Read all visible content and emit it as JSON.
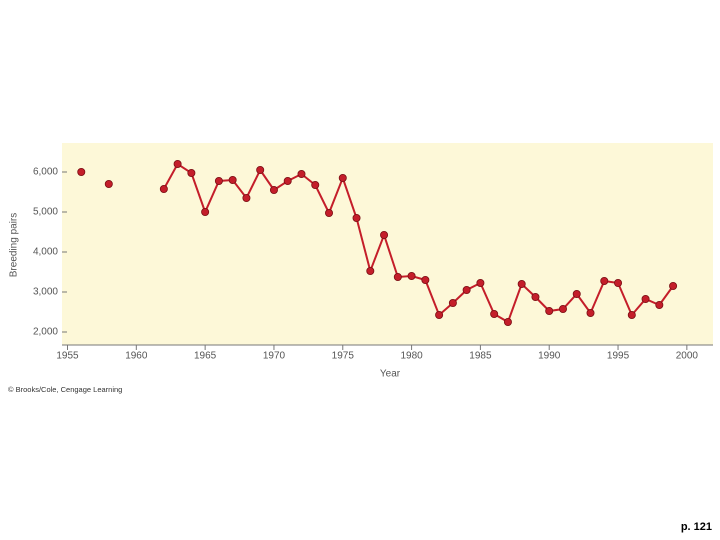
{
  "chart_data": {
    "type": "line",
    "y_label": "Breeding pairs",
    "x_label": "Year",
    "x": [
      1956,
      1957,
      1958,
      1959,
      1960,
      1961,
      1962,
      1963,
      1964,
      1965,
      1966,
      1967,
      1968,
      1969,
      1970,
      1971,
      1972,
      1973,
      1974,
      1975,
      1976,
      1977,
      1978,
      1979,
      1980,
      1981,
      1982,
      1983,
      1984,
      1985,
      1986,
      1987,
      1988,
      1989,
      1990,
      1991,
      1992,
      1993,
      1994,
      1995,
      1996,
      1997,
      1998,
      1999
    ],
    "series": [
      {
        "color": "#c41e2a",
        "values": [
          6000,
          null,
          5700,
          null,
          null,
          null,
          5575,
          6200,
          5975,
          5000,
          5775,
          5800,
          5350,
          6050,
          5550,
          5775,
          5950,
          5675,
          4975,
          5850,
          4850,
          3525,
          4425,
          3375,
          3400,
          3300,
          2425,
          2725,
          3050,
          3225,
          2450,
          2250,
          3200,
          2875,
          2525,
          2575,
          2950,
          2475,
          3275,
          3225,
          2425,
          2825,
          2675,
          3150
        ]
      }
    ],
    "xlim": [
      1954.6,
      2001.9
    ],
    "ylim": [
      1675,
      6725
    ],
    "xticks": [
      1955,
      1960,
      1965,
      1970,
      1975,
      1980,
      1985,
      1990,
      1995,
      2000
    ],
    "yticks": [
      {
        "value": 2000,
        "label": "2,000"
      },
      {
        "value": 3000,
        "label": "3,000"
      },
      {
        "value": 4000,
        "label": "4,000"
      },
      {
        "value": 5000,
        "label": "5,000"
      },
      {
        "value": 6000,
        "label": "6,000"
      }
    ],
    "background": "#fdf8d8"
  },
  "credit": "© Brooks/Cole, Cengage Learning",
  "page_number": "p. 121"
}
